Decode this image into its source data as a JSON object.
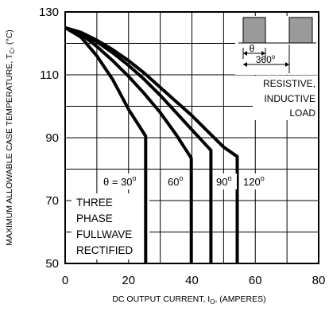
{
  "chart_data": {
    "type": "line",
    "ylabel": "MAXIMUM ALLOWABLE CASE TEMPERATURE, T",
    "ylabel_sub": "C",
    "ylabel_unit": ", (°C)",
    "xlabel": "DC OUTPUT CURRENT, I",
    "xlabel_sub": "O",
    "xlabel_unit": ", (AMPERES)",
    "xlim": [
      0,
      80
    ],
    "ylim": [
      50,
      130
    ],
    "x_ticks": [
      "0",
      "20",
      "40",
      "60",
      "80"
    ],
    "y_ticks": [
      "50",
      "70",
      "90",
      "110",
      "130"
    ],
    "x_tick_values": [
      0,
      20,
      40,
      60,
      80
    ],
    "y_tick_values": [
      50,
      70,
      90,
      110,
      130
    ],
    "grid": true,
    "series": [
      {
        "name": "θ = 30°",
        "points": [
          [
            0,
            125
          ],
          [
            5,
            122
          ],
          [
            10,
            116
          ],
          [
            15,
            108.5
          ],
          [
            20,
            99
          ],
          [
            25.4,
            90.5
          ],
          [
            25.4,
            50
          ]
        ]
      },
      {
        "name": "60°",
        "points": [
          [
            0,
            125
          ],
          [
            5,
            123
          ],
          [
            10,
            119
          ],
          [
            15,
            114.5
          ],
          [
            20,
            109.5
          ],
          [
            25,
            104
          ],
          [
            30,
            98
          ],
          [
            35,
            91
          ],
          [
            39.8,
            83.5
          ],
          [
            39.8,
            50
          ]
        ]
      },
      {
        "name": "90°",
        "points": [
          [
            0,
            125
          ],
          [
            5,
            123.3
          ],
          [
            10,
            120.5
          ],
          [
            15,
            117
          ],
          [
            20,
            113
          ],
          [
            25,
            108.5
          ],
          [
            30,
            103.5
          ],
          [
            35,
            98
          ],
          [
            40,
            92.5
          ],
          [
            46,
            86
          ],
          [
            46,
            50
          ]
        ]
      },
      {
        "name": "120°",
        "points": [
          [
            0,
            125
          ],
          [
            5,
            123.5
          ],
          [
            10,
            121
          ],
          [
            15,
            118
          ],
          [
            20,
            114.5
          ],
          [
            25,
            110.5
          ],
          [
            30,
            106
          ],
          [
            35,
            101.5
          ],
          [
            40,
            97
          ],
          [
            45,
            92
          ],
          [
            50,
            87
          ],
          [
            54.3,
            84
          ],
          [
            54.3,
            50
          ]
        ]
      }
    ],
    "series_labels": [
      {
        "prefix": "θ = 30",
        "suffix": "o"
      },
      {
        "prefix": "60",
        "suffix": "o"
      },
      {
        "prefix": "90",
        "suffix": "o"
      },
      {
        "prefix": "120",
        "suffix": "o"
      }
    ],
    "annotations": {
      "waveform_angle_short": "θ",
      "waveform_angle_full": "360",
      "waveform_angle_full_sup": "o",
      "load_lines": [
        "RESISTIVE,",
        "INDUCTIVE",
        "LOAD"
      ],
      "rectifier_lines": [
        "THREE",
        "PHASE",
        "FULLWAVE",
        "RECTIFIED"
      ]
    }
  }
}
